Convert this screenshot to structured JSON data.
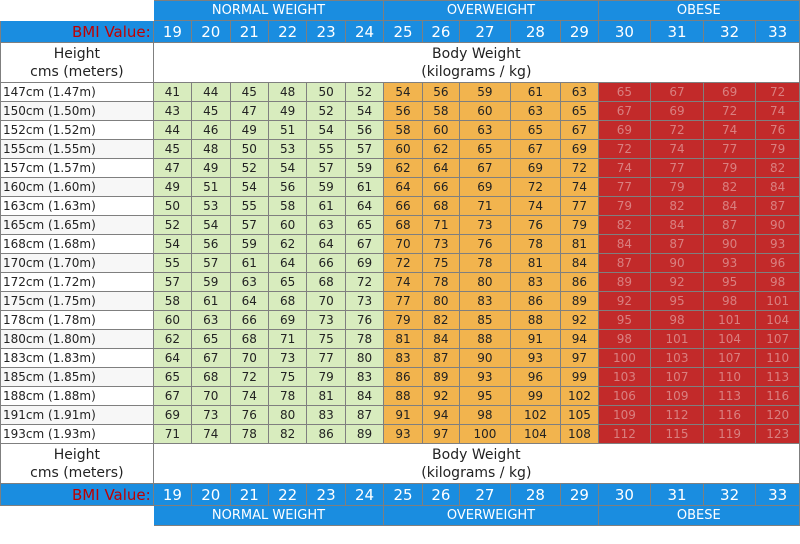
{
  "categories": {
    "normal": "NORMAL WEIGHT",
    "overweight": "OVERWEIGHT",
    "obese": "OBESE"
  },
  "bmi_label": "BMI Value:",
  "bmi_values": [
    19,
    20,
    21,
    22,
    23,
    24,
    25,
    26,
    27,
    28,
    29,
    30,
    31,
    32,
    33
  ],
  "height_header_line1": "Height",
  "height_header_line2": "cms (meters)",
  "weight_header_line1": "Body Weight",
  "weight_header_line2": "(kilograms / kg)",
  "rows": [
    {
      "height": "147cm (1.47m)",
      "weights": [
        41,
        44,
        45,
        48,
        50,
        52,
        54,
        56,
        59,
        61,
        63,
        65,
        67,
        69,
        72
      ]
    },
    {
      "height": "150cm (1.50m)",
      "weights": [
        43,
        45,
        47,
        49,
        52,
        54,
        56,
        58,
        60,
        63,
        65,
        67,
        69,
        72,
        74
      ]
    },
    {
      "height": "152cm (1.52m)",
      "weights": [
        44,
        46,
        49,
        51,
        54,
        56,
        58,
        60,
        63,
        65,
        67,
        69,
        72,
        74,
        76
      ]
    },
    {
      "height": "155cm (1.55m)",
      "weights": [
        45,
        48,
        50,
        53,
        55,
        57,
        60,
        62,
        65,
        67,
        69,
        72,
        74,
        77,
        79
      ]
    },
    {
      "height": "157cm (1.57m)",
      "weights": [
        47,
        49,
        52,
        54,
        57,
        59,
        62,
        64,
        67,
        69,
        72,
        74,
        77,
        79,
        82
      ]
    },
    {
      "height": "160cm (1.60m)",
      "weights": [
        49,
        51,
        54,
        56,
        59,
        61,
        64,
        66,
        69,
        72,
        74,
        77,
        79,
        82,
        84
      ]
    },
    {
      "height": "163cm (1.63m)",
      "weights": [
        50,
        53,
        55,
        58,
        61,
        64,
        66,
        68,
        71,
        74,
        77,
        79,
        82,
        84,
        87
      ]
    },
    {
      "height": "165cm (1.65m)",
      "weights": [
        52,
        54,
        57,
        60,
        63,
        65,
        68,
        71,
        73,
        76,
        79,
        82,
        84,
        87,
        90
      ]
    },
    {
      "height": "168cm (1.68m)",
      "weights": [
        54,
        56,
        59,
        62,
        64,
        67,
        70,
        73,
        76,
        78,
        81,
        84,
        87,
        90,
        93
      ]
    },
    {
      "height": "170cm (1.70m)",
      "weights": [
        55,
        57,
        61,
        64,
        66,
        69,
        72,
        75,
        78,
        81,
        84,
        87,
        90,
        93,
        96
      ]
    },
    {
      "height": "172cm (1.72m)",
      "weights": [
        57,
        59,
        63,
        65,
        68,
        72,
        74,
        78,
        80,
        83,
        86,
        89,
        92,
        95,
        98
      ]
    },
    {
      "height": "175cm (1.75m)",
      "weights": [
        58,
        61,
        64,
        68,
        70,
        73,
        77,
        80,
        83,
        86,
        89,
        92,
        95,
        98,
        101
      ]
    },
    {
      "height": "178cm (1.78m)",
      "weights": [
        60,
        63,
        66,
        69,
        73,
        76,
        79,
        82,
        85,
        88,
        92,
        95,
        98,
        101,
        104
      ]
    },
    {
      "height": "180cm (1.80m)",
      "weights": [
        62,
        65,
        68,
        71,
        75,
        78,
        81,
        84,
        88,
        91,
        94,
        98,
        101,
        104,
        107
      ]
    },
    {
      "height": "183cm (1.83m)",
      "weights": [
        64,
        67,
        70,
        73,
        77,
        80,
        83,
        87,
        90,
        93,
        97,
        100,
        103,
        107,
        110
      ]
    },
    {
      "height": "185cm (1.85m)",
      "weights": [
        65,
        68,
        72,
        75,
        79,
        83,
        86,
        89,
        93,
        96,
        99,
        103,
        107,
        110,
        113
      ]
    },
    {
      "height": "188cm (1.88m)",
      "weights": [
        67,
        70,
        74,
        78,
        81,
        84,
        88,
        92,
        95,
        99,
        102,
        106,
        109,
        113,
        116
      ]
    },
    {
      "height": "191cm (1.91m)",
      "weights": [
        69,
        73,
        76,
        80,
        83,
        87,
        91,
        94,
        98,
        102,
        105,
        109,
        112,
        116,
        120
      ]
    },
    {
      "height": "193cm (1.93m)",
      "weights": [
        71,
        74,
        78,
        82,
        86,
        89,
        93,
        97,
        100,
        104,
        108,
        112,
        115,
        119,
        123
      ]
    }
  ],
  "colors": {
    "header_blue": "#1a8de0",
    "bmi_label_red": "#c00000",
    "normal_green": "#d8ecbe",
    "overweight_orange": "#f2b44e",
    "obese_red": "#c22a2a"
  }
}
